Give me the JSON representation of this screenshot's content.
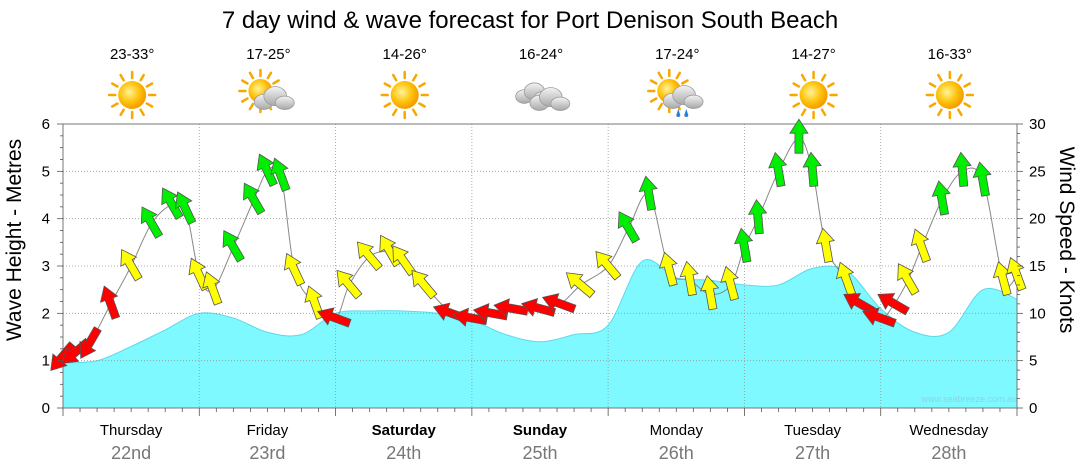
{
  "chart_data": {
    "type": "line",
    "title": "7 day wind & wave forecast for Port Denison South Beach",
    "ylabel": "Wave Height - Metres",
    "y2label": "Wind Speed - Knots",
    "ylim": [
      0,
      6
    ],
    "y2lim": [
      0,
      30
    ],
    "yticks": [
      "0",
      "1",
      "2",
      "3",
      "4",
      "5",
      "6"
    ],
    "y2ticks": [
      "0",
      "5",
      "10",
      "15",
      "20",
      "25",
      "30"
    ],
    "days": [
      {
        "name": "Thursday",
        "date": "22nd",
        "bold": false,
        "temp": "23-33°",
        "weather": "sunny"
      },
      {
        "name": "Friday",
        "date": "23rd",
        "bold": false,
        "temp": "17-25°",
        "weather": "sun-cloud"
      },
      {
        "name": "Saturday",
        "date": "24th",
        "bold": true,
        "temp": "14-26°",
        "weather": "sunny"
      },
      {
        "name": "Sunday",
        "date": "25th",
        "bold": true,
        "temp": "16-24°",
        "weather": "cloudy"
      },
      {
        "name": "Monday",
        "date": "26th",
        "bold": false,
        "temp": "17-24°",
        "weather": "sun-cloud-rain"
      },
      {
        "name": "Tuesday",
        "date": "27th",
        "bold": false,
        "temp": "14-27°",
        "weather": "sunny"
      },
      {
        "name": "Wednesday",
        "date": "28th",
        "bold": false,
        "temp": "16-33°",
        "weather": "sunny"
      }
    ],
    "wave_series": {
      "name": "Wave Height (m)",
      "x": [
        0,
        0.25,
        0.5,
        0.75,
        1.0,
        1.25,
        1.5,
        1.75,
        2.0,
        2.25,
        2.5,
        2.75,
        3.0,
        3.25,
        3.5,
        3.75,
        4.0,
        4.25,
        4.5,
        4.75,
        5.0,
        5.25,
        5.5,
        5.75,
        6.0,
        6.25,
        6.5,
        6.75,
        7.0
      ],
      "values": [
        0.95,
        1.0,
        1.3,
        1.65,
        2.0,
        1.9,
        1.6,
        1.55,
        2.0,
        2.05,
        2.05,
        2.0,
        1.85,
        1.55,
        1.4,
        1.55,
        1.75,
        3.1,
        2.75,
        2.7,
        2.6,
        2.6,
        2.95,
        2.9,
        2.1,
        1.6,
        1.6,
        2.5,
        2.3
      ]
    },
    "wind_series": {
      "name": "Wind Speed (knots)",
      "x": [
        0.0,
        0.1,
        0.2,
        0.35,
        0.5,
        0.65,
        0.8,
        0.9,
        1.0,
        1.1,
        1.25,
        1.4,
        1.5,
        1.6,
        1.7,
        1.85,
        2.0,
        2.1,
        2.25,
        2.4,
        2.5,
        2.65,
        2.85,
        3.0,
        3.15,
        3.3,
        3.5,
        3.65,
        3.8,
        4.0,
        4.15,
        4.3,
        4.45,
        4.6,
        4.75,
        4.9,
        5.0,
        5.1,
        5.25,
        5.4,
        5.5,
        5.6,
        5.75,
        5.85,
        6.0,
        6.1,
        6.2,
        6.3,
        6.45,
        6.6,
        6.75,
        6.9,
        7.0
      ],
      "values": [
        5.5,
        6.0,
        7.0,
        11.0,
        15.0,
        19.5,
        21.5,
        21.0,
        14.0,
        12.5,
        17.0,
        22.0,
        25.0,
        24.5,
        14.5,
        11.0,
        9.5,
        13.0,
        16.0,
        16.5,
        15.5,
        13.0,
        10.0,
        9.5,
        10.0,
        10.5,
        10.5,
        11.0,
        13.0,
        15.0,
        19.0,
        22.5,
        14.5,
        13.5,
        12.0,
        13.0,
        17.0,
        20.0,
        25.0,
        28.5,
        25.0,
        17.0,
        13.5,
        11.0,
        9.5,
        11.0,
        13.5,
        17.0,
        22.0,
        25.0,
        24.0,
        13.5,
        14.0
      ],
      "colors": [
        "red",
        "red",
        "red",
        "red",
        "yellow",
        "green",
        "green",
        "green",
        "yellow",
        "yellow",
        "green",
        "green",
        "green",
        "green",
        "yellow",
        "yellow",
        "red",
        "yellow",
        "yellow",
        "yellow",
        "yellow",
        "yellow",
        "red",
        "red",
        "red",
        "red",
        "red",
        "red",
        "yellow",
        "yellow",
        "green",
        "green",
        "yellow",
        "yellow",
        "yellow",
        "yellow",
        "green",
        "green",
        "green",
        "green",
        "green",
        "yellow",
        "yellow",
        "red",
        "red",
        "red",
        "yellow",
        "yellow",
        "green",
        "green",
        "green",
        "yellow",
        "yellow"
      ],
      "directions": [
        40,
        50,
        30,
        160,
        150,
        150,
        150,
        155,
        155,
        160,
        150,
        150,
        155,
        160,
        155,
        160,
        110,
        140,
        140,
        150,
        145,
        140,
        110,
        100,
        100,
        100,
        105,
        110,
        130,
        140,
        150,
        170,
        165,
        170,
        170,
        165,
        170,
        175,
        170,
        180,
        175,
        170,
        160,
        120,
        110,
        120,
        150,
        160,
        170,
        175,
        170,
        165,
        160
      ]
    },
    "credit": "www.seabreeze.com.au"
  },
  "colors": {
    "wave_fill": "#7df9ff",
    "wave_stroke": "#5fd8e8",
    "arrow_red": "#ff0000",
    "arrow_yellow": "#ffff00",
    "arrow_green": "#00ee00",
    "grid": "#999999"
  }
}
